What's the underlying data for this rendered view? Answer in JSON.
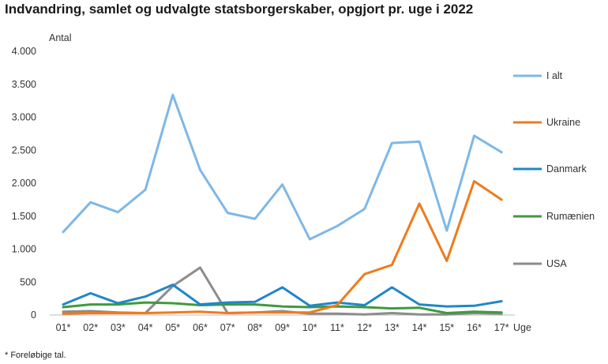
{
  "title": "Indvandring, samlet og udvalgte statsborgerskaber, opgjort pr. uge i 2022",
  "footnote": "* Foreløbige tal.",
  "chart_data": {
    "type": "line",
    "ylabel": "Antal",
    "xlabel": "Uge",
    "ylim": [
      0,
      4000
    ],
    "yticks": [
      0,
      500,
      1000,
      1500,
      2000,
      2500,
      3000,
      3500,
      4000
    ],
    "ytick_labels": [
      "0",
      "500",
      "1.000",
      "1.500",
      "2.000",
      "2.500",
      "3.000",
      "3.500",
      "4.000"
    ],
    "categories": [
      "01*",
      "02*",
      "03*",
      "04*",
      "05*",
      "06*",
      "07*",
      "08*",
      "09*",
      "10*",
      "11*",
      "12*",
      "13*",
      "14*",
      "15*",
      "16*",
      "17*"
    ],
    "grid": false,
    "legend": "right",
    "series": [
      {
        "name": "I alt",
        "color": "#7db8e8",
        "values": [
          1260,
          1710,
          1560,
          1900,
          3340,
          2200,
          1550,
          1460,
          1980,
          1150,
          1350,
          1610,
          2610,
          2630,
          1280,
          2720,
          2470
        ]
      },
      {
        "name": "Ukraine",
        "color": "#f07a1a",
        "values": [
          20,
          30,
          30,
          30,
          40,
          50,
          30,
          40,
          40,
          40,
          150,
          620,
          760,
          1690,
          820,
          2030,
          1750
        ]
      },
      {
        "name": "Danmark",
        "color": "#1f87c9",
        "values": [
          160,
          330,
          180,
          280,
          460,
          160,
          190,
          200,
          420,
          140,
          190,
          150,
          420,
          160,
          130,
          140,
          210
        ]
      },
      {
        "name": "Rumænien",
        "color": "#3f9a3f",
        "values": [
          120,
          160,
          160,
          190,
          180,
          150,
          160,
          160,
          130,
          120,
          130,
          120,
          100,
          110,
          30,
          50,
          40
        ]
      },
      {
        "name": "USA",
        "color": "#8c8c8c",
        "values": [
          50,
          60,
          40,
          30,
          440,
          720,
          30,
          40,
          60,
          20,
          20,
          10,
          30,
          10,
          10,
          30,
          20
        ]
      }
    ]
  }
}
